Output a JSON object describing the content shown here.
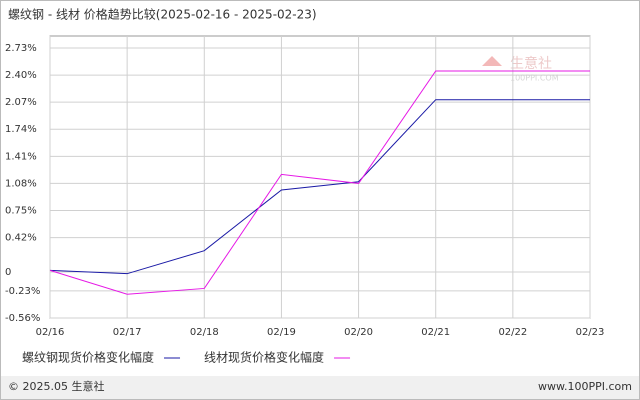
{
  "chart_data": {
    "type": "line",
    "title": "螺纹钢 - 线材 价格趋势比较(2025-02-16 - 2025-02-23)",
    "categories": [
      "02/16",
      "02/17",
      "02/18",
      "02/19",
      "02/20",
      "02/21",
      "02/22",
      "02/23"
    ],
    "series": [
      {
        "name": "螺纹钢现货价格变化幅度",
        "color": "#1a1aa6",
        "values": [
          0.02,
          -0.02,
          0.26,
          1.0,
          1.1,
          2.1,
          2.1,
          2.1
        ]
      },
      {
        "name": "线材现货价格变化幅度",
        "color": "#e619e6",
        "values": [
          0.02,
          -0.27,
          -0.2,
          1.19,
          1.08,
          2.45,
          2.45,
          2.45
        ]
      }
    ],
    "ylim": [
      -0.56,
      2.73
    ],
    "yticks": [
      {
        "value": 2.73,
        "label": "2.73%"
      },
      {
        "value": 2.4,
        "label": "2.40%"
      },
      {
        "value": 2.07,
        "label": "2.07%"
      },
      {
        "value": 1.74,
        "label": "1.74%"
      },
      {
        "value": 1.41,
        "label": "1.41%"
      },
      {
        "value": 1.08,
        "label": "1.08%"
      },
      {
        "value": 0.75,
        "label": "0.75%"
      },
      {
        "value": 0.42,
        "label": "0.42%"
      },
      0,
      {
        "value": -0.23,
        "label": "-0.23%"
      },
      {
        "value": -0.56,
        "label": "-0.56%"
      }
    ],
    "grid": true
  },
  "watermark": {
    "brand": "生意社",
    "site": "100PPI.COM"
  },
  "footer": {
    "copyright": "© 2025.05 生意社",
    "site": "www.100PPI.com"
  }
}
